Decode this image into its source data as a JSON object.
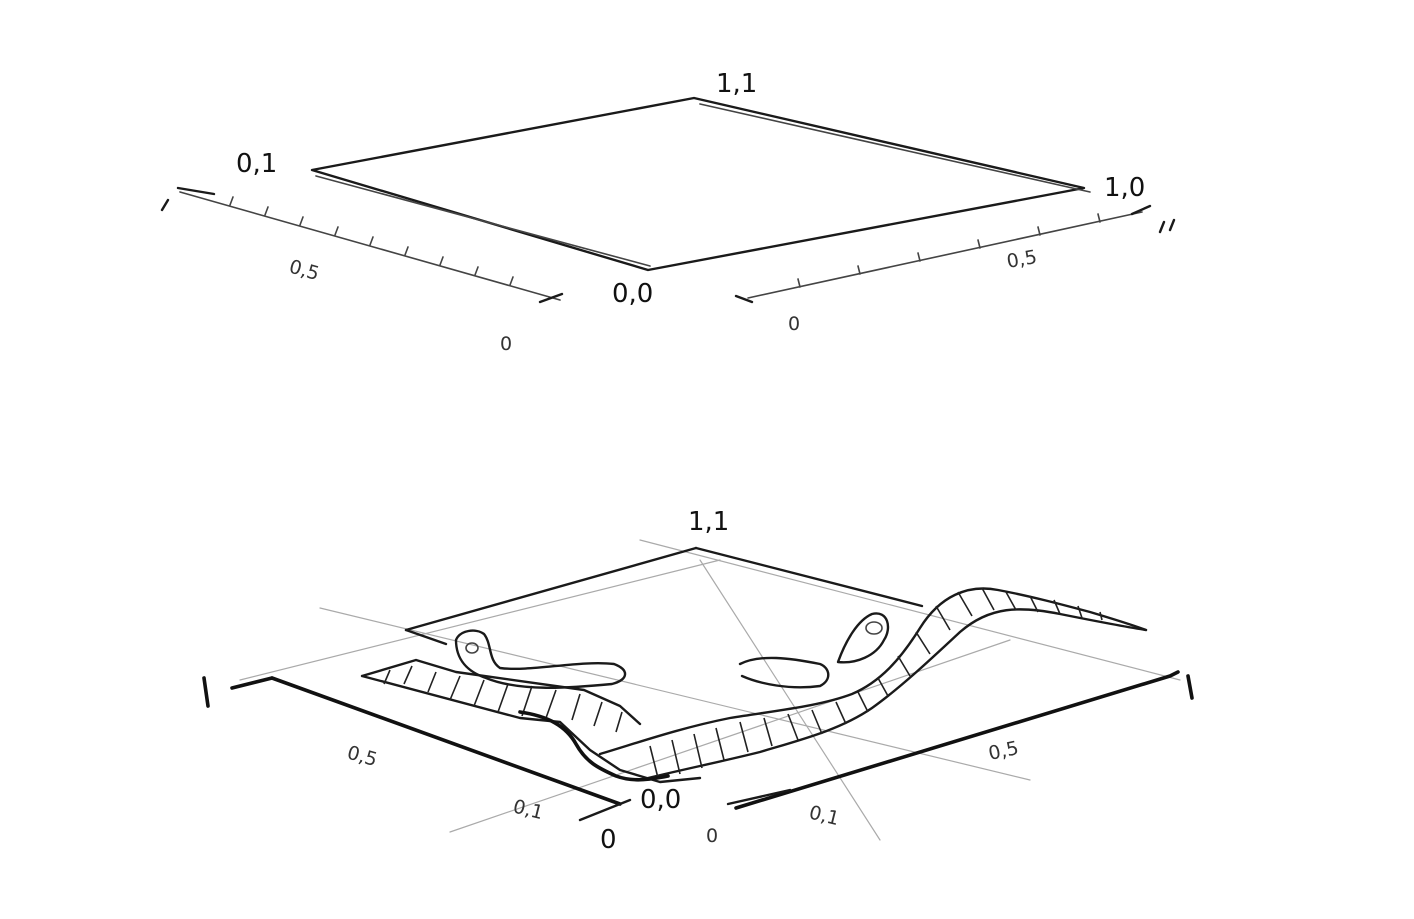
{
  "labels": {
    "top": {
      "c11": "1,1",
      "c01": "0,1",
      "c10": "1,0",
      "c00": "0,0",
      "left_half": "0,5",
      "left_zero": "0",
      "right_half": "0,5",
      "right_zero": "0"
    },
    "bottom": {
      "c11": "1,1",
      "left_half": "0,5",
      "right_half": "0,5",
      "c00": "0,0",
      "left_tick": "0,1",
      "right_tick": "0,1",
      "left_zero": "0",
      "right_zero": "0"
    }
  },
  "stroke_color": "#1a1a1a"
}
